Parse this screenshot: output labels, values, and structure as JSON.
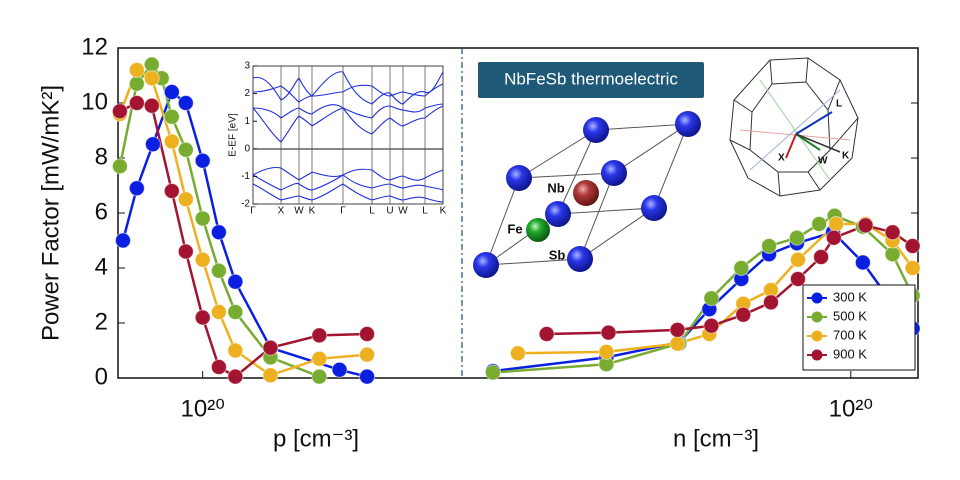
{
  "chart_data": [
    {
      "type": "line",
      "ylabel": "Power Factor [mW/mK²]",
      "xlabel": "p [cm⁻³]",
      "xscale": "log",
      "xlim": [
        4.5e+20,
        1e+18
      ],
      "xticks": [
        {
          "value": 1e+20,
          "label": "10²⁰"
        }
      ],
      "ylim": [
        0,
        12
      ],
      "yticks": [
        0,
        2,
        4,
        6,
        8,
        10,
        12
      ],
      "series": [
        {
          "name": "300 K",
          "color": "#0b1fe0",
          "x": [
            4.12e+20,
            3.22e+20,
            2.42e+20,
            1.73e+20,
            1.35e+20,
            1e+20,
            7.5e+19,
            5.6e+19,
            3e+19,
            8.8e+18,
            5.4e+18
          ],
          "values": [
            5.0,
            6.9,
            8.5,
            10.4,
            10.0,
            7.9,
            5.3,
            3.5,
            1.1,
            0.3,
            0.05
          ]
        },
        {
          "name": "500 K",
          "color": "#77ac30",
          "x": [
            4.35e+20,
            3.22e+20,
            2.47e+20,
            2.07e+20,
            1.73e+20,
            1.35e+20,
            1e+20,
            7.5e+19,
            5.6e+19,
            3e+19,
            1.26e+19
          ],
          "values": [
            7.7,
            10.7,
            11.4,
            10.9,
            9.5,
            8.3,
            5.8,
            3.9,
            2.4,
            0.75,
            0.05
          ]
        },
        {
          "name": "700 K",
          "color": "#edb120",
          "x": [
            4.35e+20,
            3.22e+20,
            2.47e+20,
            1.73e+20,
            1.35e+20,
            1e+20,
            7.5e+19,
            5.6e+19,
            3e+19,
            1.26e+19,
            5.4e+18
          ],
          "values": [
            9.6,
            11.2,
            10.9,
            8.6,
            6.5,
            4.3,
            2.4,
            1.0,
            0.1,
            0.7,
            0.85
          ]
        },
        {
          "name": "900 K",
          "color": "#a2142f",
          "x": [
            4.35e+20,
            3.22e+20,
            2.47e+20,
            1.73e+20,
            1.35e+20,
            1e+20,
            7.5e+19,
            5.6e+19,
            3e+19,
            1.26e+19,
            5.4e+18
          ],
          "values": [
            9.7,
            10.0,
            9.9,
            6.8,
            4.6,
            2.2,
            0.4,
            0.05,
            1.1,
            1.55,
            1.6
          ]
        }
      ]
    },
    {
      "type": "line",
      "xlabel": "n [cm⁻³]",
      "xscale": "log",
      "xlim": [
        1e+17,
        3.3e+20
      ],
      "xticks": [
        {
          "value": 1e+20,
          "label": "10²⁰"
        }
      ],
      "ylim": [
        0,
        12
      ],
      "legend": "lower right",
      "series": [
        {
          "name": "300 K",
          "color": "#0b1fe0",
          "x": [
            1.73e+17,
            1.3e+18,
            4.75e+18,
            8.1e+18,
            1.43e+19,
            2.34e+19,
            3.84e+19,
            7.3e+19,
            1.24e+20,
            2.1e+20,
            3e+20
          ],
          "values": [
            0.25,
            0.75,
            1.3,
            2.5,
            3.6,
            4.5,
            4.9,
            5.3,
            4.2,
            2.7,
            1.8
          ]
        },
        {
          "name": "500 K",
          "color": "#77ac30",
          "x": [
            1.73e+17,
            1.3e+18,
            4.75e+18,
            8.4e+18,
            1.43e+19,
            2.34e+19,
            3.84e+19,
            5.7e+19,
            7.5e+19,
            1.24e+20,
            2.1e+20,
            3e+20
          ],
          "values": [
            0.2,
            0.5,
            1.25,
            2.9,
            4.0,
            4.8,
            5.1,
            5.6,
            5.9,
            5.5,
            4.5,
            3.0
          ]
        },
        {
          "name": "700 K",
          "color": "#edb120",
          "x": [
            2.7e+17,
            1.3e+18,
            4.6e+18,
            8.1e+18,
            1.48e+19,
            2.42e+19,
            3.91e+19,
            7.7e+19,
            1.3e+20,
            2.1e+20,
            3e+20
          ],
          "values": [
            0.9,
            0.95,
            1.25,
            1.6,
            2.7,
            3.2,
            4.3,
            5.6,
            5.6,
            5.0,
            4.0
          ]
        },
        {
          "name": "900 K",
          "color": "#a2142f",
          "x": [
            4.5e+17,
            1.35e+18,
            4.6e+18,
            8.4e+18,
            1.48e+19,
            2.42e+19,
            3.91e+19,
            5.9e+19,
            7.4e+19,
            1.3e+20,
            2.1e+20,
            3e+20
          ],
          "values": [
            1.6,
            1.65,
            1.75,
            1.9,
            2.3,
            2.75,
            3.6,
            4.4,
            5.1,
            5.55,
            5.3,
            4.8
          ]
        }
      ]
    },
    {
      "type": "band-structure",
      "ylabel": "E-EF [eV]",
      "ylim": [
        -2,
        3
      ],
      "yticks": [
        -2,
        -1,
        0,
        1,
        2,
        3
      ],
      "xlim": [
        0,
        190
      ],
      "xticks": [
        {
          "value": 0,
          "label": "Γ"
        },
        {
          "value": 28,
          "label": "X"
        },
        {
          "value": 46,
          "label": "W"
        },
        {
          "value": 59,
          "label": "K"
        },
        {
          "value": 90,
          "label": "Γ"
        },
        {
          "value": 119,
          "label": "L"
        },
        {
          "value": 137,
          "label": "U"
        },
        {
          "value": 150,
          "label": "W"
        },
        {
          "value": 172,
          "label": "L"
        },
        {
          "value": 190,
          "label": "K"
        }
      ]
    }
  ],
  "insets": {
    "banner": "NbFeSb thermoelectric",
    "atoms": [
      "Nb",
      "Fe",
      "Sb"
    ],
    "brillouin_zone": [
      "L",
      "X",
      "W",
      "K"
    ]
  }
}
